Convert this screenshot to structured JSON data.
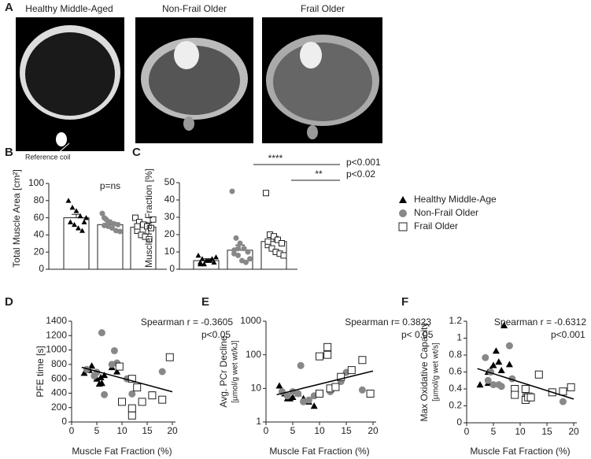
{
  "chart_data": [
    {
      "type": "image",
      "panel": "A",
      "labels": [
        "Healthy Middle-Aged",
        "Non-Frail Older",
        "Frail Older"
      ],
      "annotation": "Reference coil"
    },
    {
      "type": "bar",
      "panel": "B",
      "ylabel": "Total Muscle Area [cm²]",
      "annotations": [
        "p=ns"
      ],
      "categories": [
        null,
        null,
        null
      ],
      "values": [
        60,
        52,
        49
      ],
      "errors": [
        4,
        3,
        3
      ],
      "markers": [
        "triangle",
        "circle",
        "square"
      ],
      "points": [
        [
          80,
          72,
          68,
          62,
          55,
          55,
          52,
          48,
          45,
          60
        ],
        [
          65,
          58,
          55,
          53,
          52,
          51,
          50,
          48,
          45,
          44,
          60,
          55
        ],
        [
          60,
          55,
          52,
          50,
          48,
          45,
          40,
          38,
          35,
          58,
          50
        ]
      ],
      "ylim": [
        0,
        100
      ],
      "yticks": [
        0,
        20,
        40,
        60,
        80,
        100
      ]
    },
    {
      "type": "bar",
      "panel": "C",
      "ylabel": "Muscle Fat Fraction [%]",
      "annotations": [
        "****",
        "p<0.001",
        "**",
        "p<0.02"
      ],
      "categories": [
        null,
        null,
        null
      ],
      "values": [
        5,
        11,
        16
      ],
      "errors": [
        1,
        3,
        3
      ],
      "markers": [
        "triangle",
        "circle",
        "square"
      ],
      "points": [
        [
          8,
          6,
          5,
          5,
          4,
          4,
          3,
          5,
          6,
          7,
          3
        ],
        [
          45,
          18,
          15,
          12,
          10,
          9,
          8,
          5,
          4,
          6,
          11,
          12
        ],
        [
          44,
          20,
          19,
          17,
          15,
          14,
          12,
          10,
          9,
          8,
          16
        ]
      ],
      "ylim": [
        0,
        50
      ],
      "yticks": [
        0,
        10,
        20,
        30,
        40,
        50
      ]
    },
    {
      "type": "legend",
      "series": [
        {
          "name": "Healthy Middle-Age",
          "marker": "triangle"
        },
        {
          "name": "Non-Frail Older",
          "marker": "circle"
        },
        {
          "name": "Frail Older",
          "marker": "square"
        }
      ]
    },
    {
      "type": "scatter",
      "panel": "D",
      "xlabel": "Muscle Fat Fraction (%)",
      "ylabel": [
        "PFE time [s]"
      ],
      "annotations": [
        "Spearman r = -0.3605",
        "p<0.05"
      ],
      "xlim": [
        0,
        20
      ],
      "xticks": [
        0,
        5,
        10,
        15,
        20
      ],
      "ylim": [
        0,
        1400
      ],
      "yticks": [
        0,
        200,
        400,
        600,
        800,
        1000,
        1200,
        1400
      ],
      "log_y": false,
      "series": [
        {
          "marker": "triangle",
          "x": [
            2.5,
            3.5,
            4,
            5,
            5.5,
            6,
            5.8,
            6.5,
            8,
            9
          ],
          "y": [
            680,
            720,
            780,
            600,
            530,
            540,
            620,
            650,
            760,
            700
          ]
        },
        {
          "marker": "circle",
          "x": [
            3,
            4.5,
            5,
            6,
            6.5,
            8,
            8.5,
            9,
            12,
            16,
            18,
            11
          ],
          "y": [
            730,
            640,
            690,
            1240,
            380,
            800,
            990,
            820,
            390,
            380,
            700,
            600
          ]
        },
        {
          "marker": "square",
          "x": [
            9.5,
            10,
            12,
            12,
            12,
            13,
            14,
            16,
            18,
            19.5
          ],
          "y": [
            770,
            280,
            600,
            190,
            90,
            480,
            280,
            370,
            310,
            900
          ]
        }
      ],
      "fit": {
        "x": [
          2,
          20
        ],
        "y": [
          760,
          420
        ]
      }
    },
    {
      "type": "scatter",
      "panel": "E",
      "xlabel": "Muscle Fat Fraction (%)",
      "ylabel": [
        "Avg. PCr Decline",
        "[µmol/g wet wt/kJ]"
      ],
      "annotations": [
        "Spearman r= 0.3823",
        "p< 0.05"
      ],
      "xlim": [
        0,
        20
      ],
      "xticks": [
        0,
        5,
        10,
        15,
        20
      ],
      "ylim": [
        1,
        1000
      ],
      "yticks": [
        1,
        10,
        100,
        1000
      ],
      "log_y": true,
      "series": [
        {
          "marker": "triangle",
          "x": [
            2.5,
            3.5,
            4,
            4.5,
            5,
            5,
            6,
            8,
            9,
            7
          ],
          "y": [
            12,
            7,
            5,
            5,
            5.5,
            8,
            7,
            4,
            3,
            5
          ]
        },
        {
          "marker": "circle",
          "x": [
            3,
            4,
            5,
            6,
            6.5,
            7,
            8,
            9,
            12,
            15,
            18,
            14
          ],
          "y": [
            8,
            6,
            8,
            7,
            48,
            4,
            4.5,
            6,
            8,
            30,
            9,
            16
          ]
        },
        {
          "marker": "square",
          "x": [
            10,
            10,
            11.5,
            11.5,
            12,
            13,
            14,
            16,
            18,
            19.5
          ],
          "y": [
            7,
            90,
            170,
            100,
            10,
            11,
            22,
            35,
            70,
            7
          ]
        }
      ],
      "fit": {
        "x": [
          2,
          20
        ],
        "y": [
          6.5,
          33
        ]
      }
    },
    {
      "type": "scatter",
      "panel": "F",
      "xlabel": "Muscle Fat Fraction (%)",
      "ylabel": [
        "Max Oxidative Capacity",
        "[µmol/g wet wt/s]"
      ],
      "annotations": [
        "Spearman r = -0.6312",
        "p<0.001"
      ],
      "xlim": [
        0,
        20
      ],
      "xticks": [
        0,
        5,
        10,
        15,
        20
      ],
      "ylim": [
        0,
        1.2
      ],
      "yticks": [
        0,
        0.2,
        0.4,
        0.6,
        0.8,
        1,
        1.2
      ],
      "log_y": false,
      "series": [
        {
          "marker": "triangle",
          "x": [
            2.5,
            4,
            4.5,
            5,
            5.5,
            6,
            6.5,
            7,
            8,
            4
          ],
          "y": [
            0.45,
            0.47,
            0.63,
            0.68,
            0.85,
            0.72,
            0.62,
            1.15,
            0.69,
            0.6
          ]
        },
        {
          "marker": "circle",
          "x": [
            3.5,
            4,
            4.5,
            5,
            6,
            6.5,
            8,
            8.5,
            9,
            11,
            12,
            18
          ],
          "y": [
            0.77,
            0.5,
            0.6,
            0.45,
            0.45,
            0.43,
            0.91,
            0.52,
            0.35,
            0.33,
            0.32,
            0.25
          ]
        },
        {
          "marker": "square",
          "x": [
            9,
            9,
            11,
            11.5,
            12,
            13.5,
            16,
            18,
            19.5,
            11
          ],
          "y": [
            0.4,
            0.33,
            0.27,
            0.3,
            0.3,
            0.57,
            0.36,
            0.37,
            0.42,
            0.4
          ]
        }
      ],
      "fit": {
        "x": [
          2,
          20
        ],
        "y": [
          0.64,
          0.28
        ]
      }
    }
  ]
}
